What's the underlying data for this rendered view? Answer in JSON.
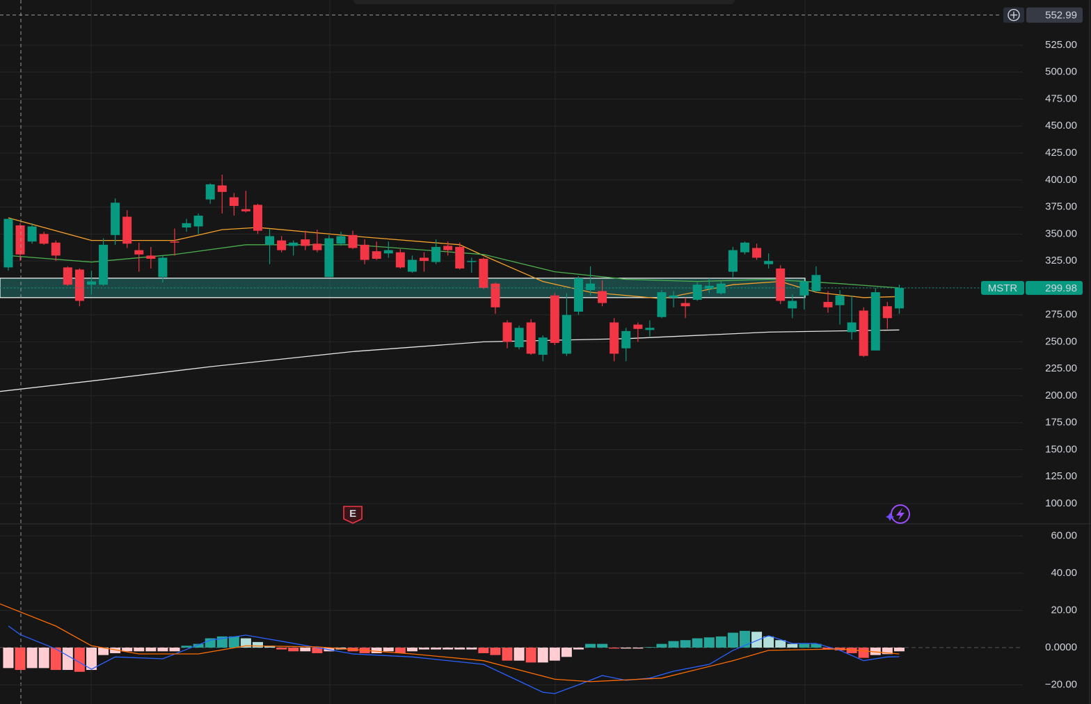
{
  "chart_data": [
    {
      "type": "candlestick",
      "symbol": "MSTR",
      "last_price": 299.98,
      "crosshair_price": 552.99,
      "xlim": [
        -0.7,
        85.4
      ],
      "ylim": [
        81.3,
        566.9
      ],
      "yticks": [
        {
          "value": 100,
          "label": "100.00"
        },
        {
          "value": 125,
          "label": "125.00"
        },
        {
          "value": 150,
          "label": "150.00"
        },
        {
          "value": 175,
          "label": "175.00"
        },
        {
          "value": 200,
          "label": "200.00"
        },
        {
          "value": 225,
          "label": "225.00"
        },
        {
          "value": 250,
          "label": "250.00"
        },
        {
          "value": 275,
          "label": "275.00"
        },
        {
          "value": 300,
          "label": "300.00"
        },
        {
          "value": 325,
          "label": "325.00"
        },
        {
          "value": 350,
          "label": "350.00"
        },
        {
          "value": 375,
          "label": "375.00"
        },
        {
          "value": 400,
          "label": "400.00"
        },
        {
          "value": 425,
          "label": "425.00"
        },
        {
          "value": 450,
          "label": "450.00"
        },
        {
          "value": 475,
          "label": "475.00"
        },
        {
          "value": 500,
          "label": "500.00"
        },
        {
          "value": 525,
          "label": "525.00"
        }
      ],
      "grid": true,
      "up_color": "#089981",
      "down_color": "#f23645",
      "zone": [
        291,
        309
      ],
      "open": [
        319,
        358,
        343,
        350,
        342,
        319,
        317,
        303,
        303,
        349,
        366,
        335,
        330,
        310,
        343,
        356,
        357,
        382,
        395,
        384,
        373,
        377,
        340,
        344,
        339,
        345,
        341,
        310,
        341,
        349,
        340,
        334,
        332,
        333,
        315,
        328,
        324,
        339,
        338,
        324,
        327,
        304,
        268,
        245,
        268,
        238,
        293,
        239,
        278,
        298,
        297,
        268,
        244,
        266,
        261,
        273,
        291,
        286,
        289,
        299,
        295,
        315,
        333,
        337,
        322,
        318,
        281,
        293,
        297,
        287,
        284,
        259,
        279,
        242,
        283,
        281
      ],
      "high": [
        364,
        360,
        360,
        352,
        344,
        320,
        318,
        316,
        346,
        383,
        372,
        342,
        338,
        330,
        355,
        364,
        369,
        397,
        405,
        388,
        390,
        378,
        355,
        348,
        344,
        353,
        354,
        349,
        352,
        353,
        345,
        343,
        343,
        336,
        330,
        333,
        345,
        343,
        342,
        328,
        328,
        305,
        270,
        265,
        271,
        256,
        295,
        295,
        311,
        320,
        307,
        272,
        263,
        268,
        270,
        298,
        297,
        291,
        305,
        309,
        306,
        338,
        343,
        341,
        332,
        321,
        294,
        308,
        320,
        297,
        298,
        293,
        282,
        300,
        287,
        303
      ],
      "low": [
        316,
        325,
        341,
        340,
        325,
        302,
        283,
        294,
        302,
        340,
        337,
        315,
        318,
        305,
        330,
        352,
        350,
        378,
        369,
        367,
        370,
        350,
        322,
        333,
        330,
        335,
        333,
        310,
        339,
        336,
        322,
        326,
        328,
        318,
        314,
        315,
        322,
        330,
        317,
        314,
        299,
        276,
        244,
        243,
        238,
        232,
        247,
        237,
        275,
        293,
        283,
        232,
        232,
        250,
        255,
        272,
        282,
        272,
        288,
        295,
        294,
        310,
        331,
        326,
        318,
        285,
        272,
        280,
        296,
        277,
        266,
        252,
        236,
        242,
        262,
        276
      ],
      "close": [
        364,
        331,
        357,
        341,
        330,
        303,
        288,
        306,
        340,
        379,
        341,
        331,
        327,
        328,
        342,
        360,
        367,
        396,
        389,
        376,
        371,
        353,
        348,
        335,
        342,
        339,
        335,
        346,
        348,
        337,
        326,
        327,
        335,
        319,
        326,
        325,
        338,
        335,
        318,
        325,
        300,
        282,
        250,
        263,
        239,
        254,
        249,
        275,
        309,
        304,
        286,
        239,
        260,
        262,
        263,
        296,
        293,
        283,
        303,
        302,
        304,
        335,
        342,
        328,
        325,
        288,
        288,
        306,
        312,
        282,
        293,
        268,
        237,
        296,
        272,
        300
      ],
      "lines": [
        {
          "color": "#f7a12a",
          "x": [
            0,
            7,
            14,
            18,
            21,
            29,
            38,
            40,
            45,
            49,
            55,
            61,
            65,
            68,
            72,
            75
          ],
          "values": [
            365,
            344,
            344,
            354,
            356,
            348,
            340,
            330,
            306,
            296,
            290,
            303,
            306,
            296,
            291,
            292
          ]
        },
        {
          "color": "#4caf50",
          "x": [
            0,
            7,
            14,
            20,
            29,
            40,
            46,
            52,
            58,
            64,
            70,
            75
          ],
          "values": [
            330,
            324,
            331,
            340,
            340,
            331,
            315,
            308,
            306,
            308,
            304,
            300
          ]
        },
        {
          "color": "#e6e6e6",
          "x": [
            -0.7,
            8,
            17,
            29,
            40,
            52,
            64,
            75
          ],
          "values": [
            204,
            215,
            227,
            241,
            250,
            253,
            259,
            261
          ]
        }
      ],
      "events": [
        {
          "label": "E",
          "x": 29
        }
      ]
    },
    {
      "type": "macd",
      "xlim": [
        -0.7,
        85.4
      ],
      "ylim": [
        -30.3,
        66.5
      ],
      "yticks": [
        {
          "value": -20,
          "label": "−20.00"
        },
        {
          "value": 0,
          "label": "0.0000"
        },
        {
          "value": 20,
          "label": "20.00"
        },
        {
          "value": 40,
          "label": "40.00"
        },
        {
          "value": 60,
          "label": "60.00"
        }
      ],
      "hist_colors": [
        "#26a69a",
        "#b2dfdb",
        "#ff5252",
        "#ffcdd2"
      ],
      "histogram": [
        -11,
        -12,
        -11,
        -11,
        -12,
        -12,
        -13,
        -12,
        -4,
        -3,
        -2,
        -2,
        -2,
        -2,
        -2,
        1,
        2,
        5,
        6,
        6,
        5,
        3,
        1,
        -1,
        -2,
        -2,
        -3,
        -2,
        -1,
        -2,
        -3,
        -3,
        -2,
        -3,
        -2,
        -1,
        -1,
        -1,
        -1,
        -1,
        -3,
        -4,
        -7,
        -7,
        -8,
        -8,
        -7,
        -5,
        -1,
        2,
        2,
        -0.5,
        -0.5,
        -0.5,
        0.3,
        2,
        3.5,
        4,
        5,
        5.5,
        6,
        8,
        9,
        8.5,
        6,
        4,
        2,
        2,
        2,
        -1,
        -1.5,
        -3,
        -5.5,
        -4,
        -3.5,
        -2
      ],
      "lines": [
        {
          "color": "#2962ff",
          "x": [
            0,
            1,
            4,
            7,
            9,
            13,
            17,
            20,
            23,
            29,
            34,
            40,
            45,
            46,
            48,
            50,
            52,
            54,
            56,
            59,
            61,
            64,
            66,
            68,
            70,
            72,
            74,
            75
          ],
          "values": [
            11.6,
            7,
            -0.7,
            -11.6,
            -5,
            -6,
            4,
            6.7,
            3.4,
            -3.4,
            -5,
            -9,
            -24,
            -24.7,
            -20,
            -15,
            -17.6,
            -16.4,
            -12.7,
            -9,
            -1.5,
            6.4,
            2.2,
            2.2,
            -1.5,
            -7,
            -5,
            -4.9
          ]
        },
        {
          "color": "#ff6d00",
          "x": [
            -0.7,
            4,
            7,
            11,
            16,
            20,
            26,
            34,
            40,
            46,
            49,
            55,
            61,
            64,
            70,
            75
          ],
          "values": [
            23.5,
            11.6,
            1,
            -3.4,
            -3.4,
            1,
            0.4,
            -3.4,
            -7,
            -17,
            -18.3,
            -16.4,
            -7,
            -1.5,
            -0.7,
            -3.4
          ]
        }
      ]
    }
  ]
}
